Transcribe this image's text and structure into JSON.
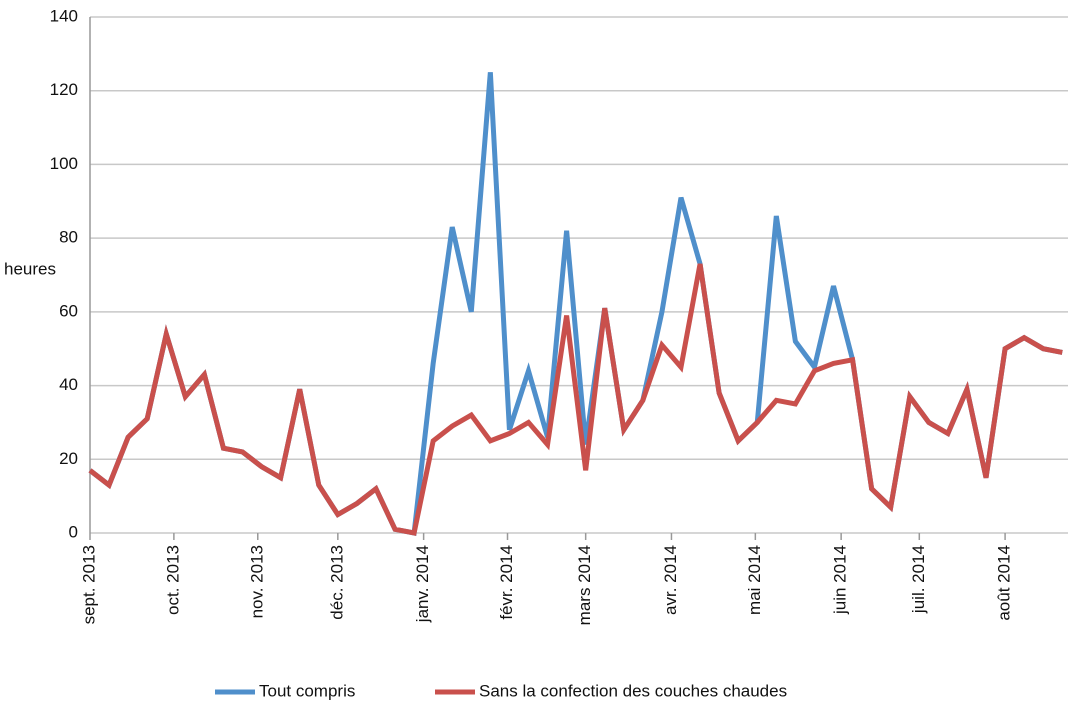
{
  "chart_data": {
    "type": "line",
    "y_label": "heures",
    "x": [
      0,
      1,
      2,
      3,
      4,
      5,
      6,
      7,
      8,
      9,
      10,
      11,
      12,
      13,
      14,
      15,
      16,
      17,
      18,
      19,
      20,
      21,
      22,
      23,
      24,
      25,
      26,
      27,
      28,
      29,
      30,
      31,
      32,
      33,
      34,
      35,
      36,
      37,
      38,
      39,
      40,
      41,
      42,
      43,
      44,
      45,
      46,
      47,
      48,
      49,
      50,
      51
    ],
    "xlim": [
      0,
      51.3
    ],
    "xticks": [
      {
        "value": 0,
        "label": "sept. 2013"
      },
      {
        "value": 4.4,
        "label": "oct. 2013"
      },
      {
        "value": 8.8,
        "label": "nov. 2013"
      },
      {
        "value": 13.0,
        "label": "déc. 2013"
      },
      {
        "value": 17.5,
        "label": "janv. 2014"
      },
      {
        "value": 21.9,
        "label": "févr. 2014"
      },
      {
        "value": 26.0,
        "label": "mars 2014"
      },
      {
        "value": 30.5,
        "label": "avr. 2014"
      },
      {
        "value": 34.9,
        "label": "mai 2014"
      },
      {
        "value": 39.4,
        "label": "juin 2014"
      },
      {
        "value": 43.5,
        "label": "juil. 2014"
      },
      {
        "value": 48.0,
        "label": "août 2014"
      }
    ],
    "ylim": [
      0,
      140
    ],
    "yticks": [
      0,
      20,
      40,
      60,
      80,
      100,
      120,
      140
    ],
    "grid": true,
    "legend": "bottom",
    "series": [
      {
        "name": "Tout compris",
        "color": "#4f8fcb",
        "values": [
          17,
          13,
          26,
          31,
          54,
          37,
          43,
          23,
          22,
          18,
          15,
          39,
          13,
          5,
          8,
          12,
          1,
          0,
          46,
          83,
          60,
          125,
          28,
          44,
          26,
          82,
          24,
          61,
          28,
          36,
          60,
          91,
          73,
          38,
          25,
          30,
          86,
          52,
          45,
          67,
          47,
          12,
          7,
          37,
          30,
          27,
          39,
          15,
          50,
          53,
          50,
          49
        ]
      },
      {
        "name": "Sans la confection des couches chaudes",
        "color": "#c9504c",
        "values": [
          17,
          13,
          26,
          31,
          54,
          37,
          43,
          23,
          22,
          18,
          15,
          39,
          13,
          5,
          8,
          12,
          1,
          0,
          25,
          29,
          32,
          25,
          27,
          30,
          24,
          59,
          17,
          61,
          28,
          36,
          51,
          45,
          73,
          38,
          25,
          30,
          36,
          35,
          44,
          46,
          47,
          12,
          7,
          37,
          30,
          27,
          39,
          15,
          50,
          53,
          50,
          49
        ]
      }
    ]
  }
}
